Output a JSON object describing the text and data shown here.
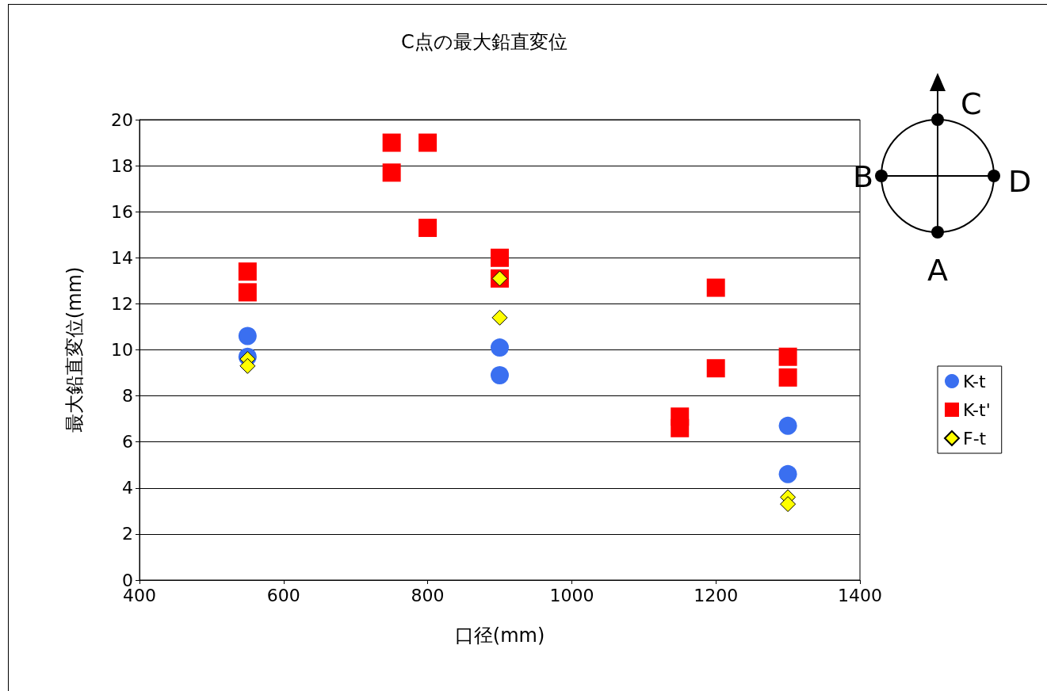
{
  "chart_data": {
    "type": "scatter",
    "title": "C点の最大鉛直変位",
    "xlabel": "口径(mm)",
    "ylabel": "最大鉛直変位(mm)",
    "xlim": [
      400,
      1400
    ],
    "xticks": [
      400,
      600,
      800,
      1000,
      1200,
      1400
    ],
    "ylim": [
      0,
      20
    ],
    "yticks": [
      0,
      2,
      4,
      6,
      8,
      10,
      12,
      14,
      16,
      18,
      20
    ],
    "grid": "y",
    "legend": "right",
    "annotations": [
      "C",
      "B",
      "D",
      "A"
    ],
    "series": [
      {
        "name": "K-t",
        "color": "#3a6ff0",
        "marker": "circle",
        "x": [
          550,
          550,
          900,
          900,
          1300,
          1300
        ],
        "values": [
          10.6,
          9.7,
          10.1,
          8.9,
          6.7,
          4.6
        ]
      },
      {
        "name": "K-t'",
        "color": "#ff0000",
        "marker": "square",
        "x": [
          550,
          550,
          750,
          750,
          800,
          800,
          900,
          900,
          1150,
          1150,
          1200,
          1200,
          1300,
          1300
        ],
        "values": [
          13.4,
          12.5,
          19.0,
          17.7,
          19.0,
          15.3,
          14.0,
          13.1,
          7.1,
          6.6,
          12.7,
          9.2,
          9.7,
          8.8
        ]
      },
      {
        "name": "F-t",
        "color": "#ffff00",
        "marker": "diamond",
        "x": [
          550,
          550,
          900,
          900,
          1300,
          1300
        ],
        "values": [
          9.6,
          9.3,
          13.1,
          11.4,
          3.6,
          3.3
        ]
      }
    ]
  }
}
